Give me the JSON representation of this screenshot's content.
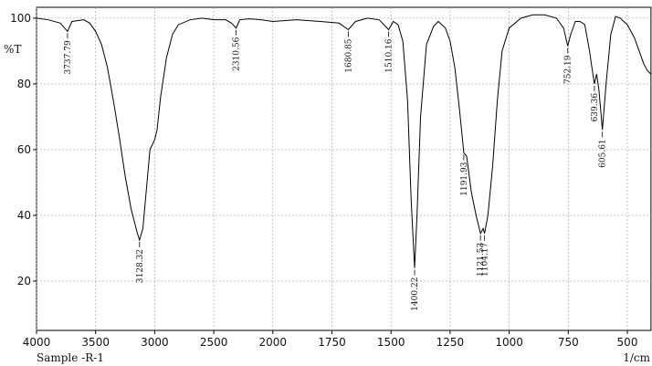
{
  "chart_data": {
    "type": "line",
    "y_label": "%T",
    "x_label": "1/cm",
    "sample": "Sample -R-1",
    "xlim": [
      4000,
      400
    ],
    "ylim": [
      5,
      103.3
    ],
    "xticks": [
      4000,
      3500,
      3000,
      2500,
      2000,
      1750,
      1500,
      1250,
      1000,
      750,
      500
    ],
    "yticks": [
      20,
      40,
      60,
      80,
      100
    ],
    "grid": true,
    "series": [
      {
        "name": "Sample -R-1",
        "color": "#000000",
        "x": [
          4000,
          3900,
          3800,
          3737.79,
          3700,
          3600,
          3550,
          3500,
          3450,
          3400,
          3350,
          3300,
          3250,
          3200,
          3150,
          3128.32,
          3100,
          3070,
          3040,
          3000,
          2980,
          2950,
          2900,
          2850,
          2800,
          2700,
          2600,
          2500,
          2400,
          2350,
          2310.56,
          2280,
          2200,
          2100,
          2000,
          1900,
          1800,
          1720,
          1680.85,
          1650,
          1600,
          1550,
          1510.16,
          1490,
          1470,
          1450,
          1430,
          1415,
          1400.22,
          1390,
          1375,
          1350,
          1320,
          1300,
          1270,
          1250,
          1230,
          1210,
          1191.93,
          1180,
          1160,
          1140,
          1121.53,
          1110,
          1104.17,
          1090,
          1070,
          1050,
          1030,
          1000,
          950,
          900,
          850,
          800,
          770,
          752.19,
          740,
          720,
          700,
          680,
          660,
          650,
          639.36,
          630,
          620,
          605.61,
          590,
          570,
          550,
          530,
          500,
          470,
          450,
          430,
          415,
          400
        ],
        "values": [
          100,
          99.5,
          98.5,
          96,
          99,
          99.5,
          98.5,
          96,
          92,
          85,
          75,
          64,
          52,
          42,
          35,
          32.5,
          36,
          48,
          60,
          63,
          66,
          76,
          88,
          95,
          98,
          99.5,
          100,
          99.5,
          99.5,
          98.5,
          97,
          99.5,
          99.8,
          99.5,
          99,
          99.5,
          99,
          98.5,
          96.5,
          99,
          100,
          99.5,
          96.5,
          99,
          98,
          93,
          75,
          45,
          24,
          40,
          70,
          92,
          97.5,
          99,
          97,
          93,
          85,
          72,
          59,
          58,
          47,
          40,
          34.5,
          36,
          34.5,
          40,
          55,
          75,
          90,
          97,
          100,
          101,
          101,
          100,
          97,
          91.5,
          95,
          99,
          99,
          98,
          90,
          85,
          80,
          83,
          78,
          66,
          80,
          95,
          100.5,
          100,
          98,
          94,
          90,
          86,
          84,
          83
        ]
      }
    ],
    "peaks": [
      3737.79,
      3128.32,
      2310.56,
      1680.85,
      1510.16,
      1400.22,
      1191.93,
      1121.53,
      1104.17,
      752.19,
      639.36,
      605.61
    ]
  }
}
